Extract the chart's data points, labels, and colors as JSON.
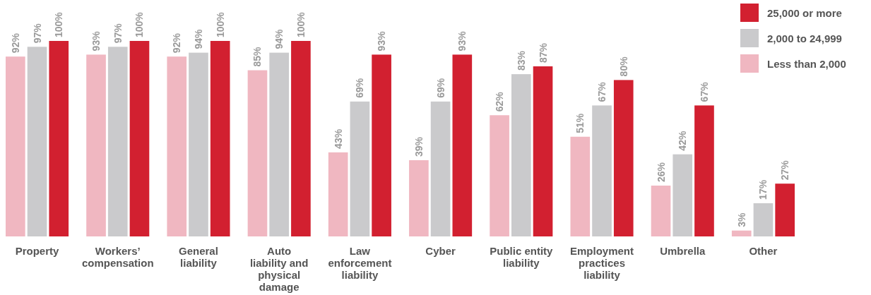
{
  "chart_data": {
    "type": "bar",
    "categories": [
      "Property",
      "Workers’ compensation",
      "General liability",
      "Auto liability and physical damage",
      "Law enforcement liability",
      "Cyber",
      "Public entity liability",
      "Employment practices liability",
      "Umbrella",
      "Other"
    ],
    "series": [
      {
        "name": "Less than 2,000",
        "color": "#f0b7c1",
        "values": [
          92,
          93,
          92,
          85,
          43,
          39,
          62,
          51,
          26,
          3
        ],
        "value_labels": [
          "92%",
          "93%",
          "92%",
          "85%",
          "43%",
          "39%",
          "62%",
          "51%",
          "26%",
          "3%"
        ]
      },
      {
        "name": "2,000 to 24,999",
        "color": "#cacacc",
        "values": [
          97,
          97,
          94,
          94,
          69,
          69,
          83,
          67,
          42,
          17
        ],
        "value_labels": [
          "97%",
          "97%",
          "94%",
          "94%",
          "69%",
          "69%",
          "83%",
          "67%",
          "42%",
          "17%"
        ]
      },
      {
        "name": "25,000 or more",
        "color": "#d22030",
        "values": [
          100,
          100,
          100,
          100,
          93,
          93,
          87,
          80,
          67,
          27
        ],
        "value_labels": [
          "100%",
          "100%",
          "100%",
          "100%",
          "93%",
          "93%",
          "87%",
          "80%",
          "67%",
          "27%"
        ]
      }
    ],
    "legend": "top right"
  }
}
